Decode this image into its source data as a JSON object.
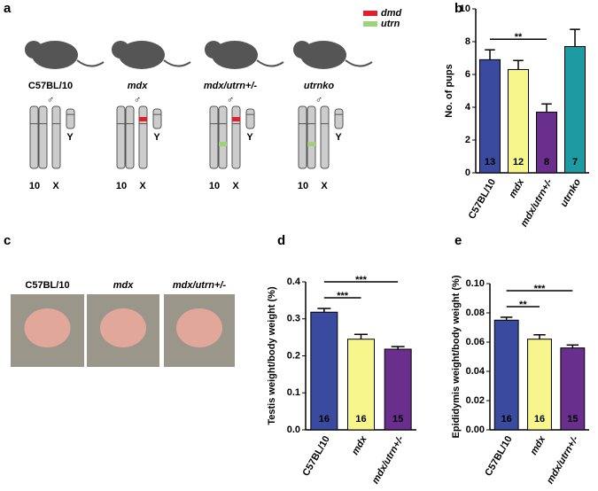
{
  "panel_labels": [
    "a",
    "b",
    "c",
    "d",
    "e"
  ],
  "diagram": {
    "strains": [
      "C57BL/10",
      "mdx",
      "mdx/utrn+/-",
      "utrnko"
    ],
    "sex": "♂",
    "chromosomes": [
      "10",
      "X",
      "Y"
    ],
    "legend": [
      {
        "name": "dmd",
        "color": "#e0202a"
      },
      {
        "name": "utrn",
        "color": "#9fd27a"
      }
    ],
    "markers": [
      [],
      [
        "dmd"
      ],
      [
        "dmd",
        "utrn"
      ],
      [
        "utrn"
      ]
    ]
  },
  "photos": {
    "labels": [
      "C57BL/10",
      "mdx",
      "mdx/utrn+/-"
    ]
  },
  "chart_data": [
    {
      "type": "bar",
      "ylabel": "No. of pups",
      "categories": [
        "C57BL/10",
        "mdx",
        "mdx/utrn+/-",
        "utrnko"
      ],
      "values": [
        6.9,
        6.3,
        3.7,
        7.7
      ],
      "errors": [
        0.6,
        0.55,
        0.5,
        1.05
      ],
      "n": [
        13,
        12,
        8,
        7
      ],
      "colors": [
        "#3a4a9e",
        "#f6f68c",
        "#6a2e8c",
        "#1d9aa2"
      ],
      "ylim": [
        0,
        10
      ],
      "yticks": [
        0,
        2,
        4,
        6,
        8,
        10
      ],
      "annotations": [
        {
          "label": "**",
          "between": [
            "C57BL/10",
            "mdx/utrn+/-"
          ]
        }
      ]
    },
    {
      "type": "bar",
      "ylabel": "Testis weight/body weight (%)",
      "categories": [
        "C57BL/10",
        "mdx",
        "mdx/utrn+/-"
      ],
      "values": [
        0.318,
        0.245,
        0.218
      ],
      "errors": [
        0.01,
        0.013,
        0.007
      ],
      "n": [
        16,
        16,
        15
      ],
      "colors": [
        "#3a4a9e",
        "#f6f68c",
        "#6a2e8c"
      ],
      "ylim": [
        0,
        0.4
      ],
      "yticks": [
        {
          "value": 0,
          "label": "0.0"
        },
        0.1,
        0.2,
        0.3,
        0.4
      ],
      "annotations": [
        {
          "label": "***",
          "between": [
            "C57BL/10",
            "mdx"
          ]
        },
        {
          "label": "***",
          "between": [
            "C57BL/10",
            "mdx/utrn+/-"
          ]
        }
      ]
    },
    {
      "type": "bar",
      "ylabel": "Epididymis weight/body weight (%)",
      "categories": [
        "C57BL/10",
        "mdx",
        "mdx/utrn+/-"
      ],
      "values": [
        0.075,
        0.062,
        0.056
      ],
      "errors": [
        0.002,
        0.003,
        0.002
      ],
      "n": [
        16,
        16,
        15
      ],
      "colors": [
        "#3a4a9e",
        "#f6f68c",
        "#6a2e8c"
      ],
      "ylim": [
        0,
        0.1
      ],
      "yticks": [
        {
          "value": 0,
          "label": "0.00"
        },
        {
          "value": 0.02,
          "label": "0.02"
        },
        {
          "value": 0.04,
          "label": "0.04"
        },
        {
          "value": 0.06,
          "label": "0.06"
        },
        {
          "value": 0.08,
          "label": "0.08"
        },
        {
          "value": 0.1,
          "label": "0.10"
        }
      ],
      "annotations": [
        {
          "label": "**",
          "between": [
            "C57BL/10",
            "mdx"
          ]
        },
        {
          "label": "***",
          "between": [
            "C57BL/10",
            "mdx/utrn+/-"
          ]
        }
      ]
    }
  ]
}
